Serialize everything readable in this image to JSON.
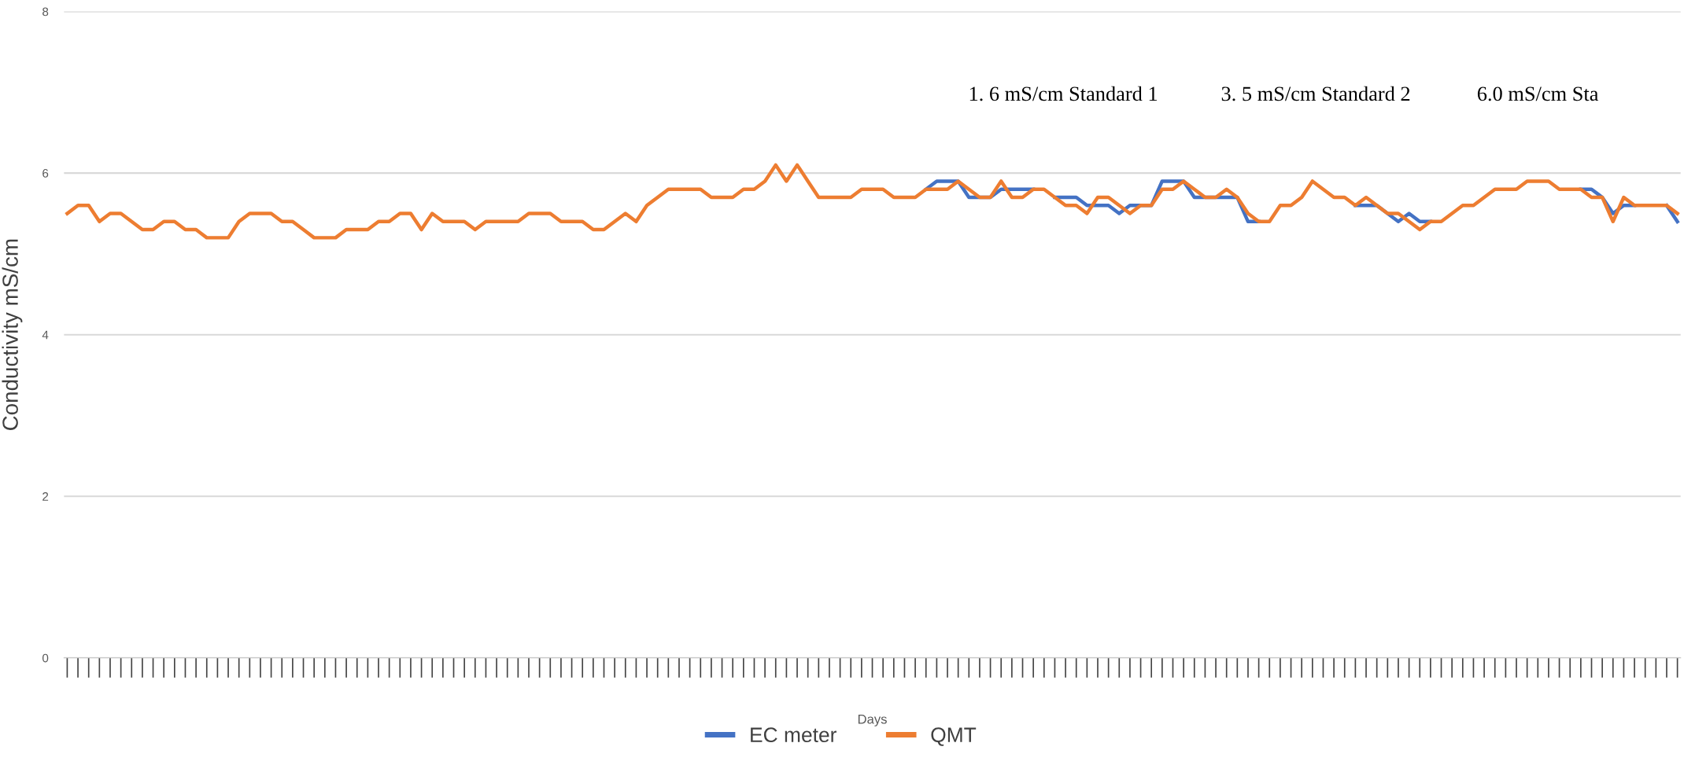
{
  "chart_data": {
    "type": "line",
    "xlabel": "Days",
    "ylabel": "Conductivity mS/cm",
    "categories": [
      null,
      null,
      null,
      null,
      null,
      null,
      null,
      null,
      null,
      null,
      null,
      null,
      null,
      null,
      null,
      null,
      null,
      null,
      null,
      null,
      null,
      null,
      null,
      null,
      null,
      null,
      null,
      null,
      null,
      null,
      null,
      null,
      null,
      null,
      null,
      null,
      null,
      null,
      null,
      null,
      null,
      null,
      null,
      null,
      null,
      null,
      null,
      null,
      null,
      null,
      null,
      null,
      null,
      null,
      null,
      null,
      null,
      null,
      null,
      null,
      null,
      null,
      null,
      null,
      null,
      null,
      null,
      null,
      null,
      null,
      null,
      null,
      null,
      null,
      null,
      null,
      null,
      null,
      null,
      null,
      null,
      null,
      null,
      null,
      null,
      null,
      null,
      null,
      null,
      null,
      null,
      null,
      null,
      null,
      null,
      null,
      null,
      null,
      null,
      null,
      null,
      null,
      null,
      null,
      null,
      null,
      null,
      null,
      null,
      null,
      null,
      null,
      null,
      null,
      null,
      null,
      null,
      null,
      null,
      null,
      null,
      null,
      null,
      null,
      null,
      null,
      null,
      null,
      null,
      null,
      null,
      null,
      null,
      null,
      null,
      null,
      null,
      null,
      null,
      null,
      null,
      null,
      null,
      null,
      null,
      null,
      null,
      null,
      null,
      null,
      null
    ],
    "series": [
      {
        "name": "EC meter",
        "color": "#4472c4",
        "values": [
          null,
          null,
          null,
          null,
          null,
          null,
          null,
          null,
          null,
          null,
          null,
          null,
          null,
          null,
          null,
          null,
          null,
          null,
          null,
          null,
          null,
          null,
          null,
          null,
          null,
          null,
          null,
          null,
          null,
          null,
          null,
          null,
          null,
          null,
          null,
          null,
          null,
          null,
          null,
          null,
          null,
          null,
          null,
          null,
          null,
          null,
          null,
          null,
          null,
          null,
          null,
          null,
          null,
          null,
          null,
          null,
          null,
          null,
          null,
          null,
          null,
          null,
          null,
          null,
          null,
          null,
          null,
          null,
          null,
          null,
          null,
          null,
          null,
          null,
          null,
          null,
          null,
          null,
          null,
          null,
          5.8,
          5.9,
          5.9,
          5.9,
          5.7,
          5.7,
          5.7,
          5.8,
          5.8,
          5.8,
          5.8,
          null,
          5.7,
          5.7,
          5.7,
          5.6,
          5.6,
          5.6,
          5.5,
          5.6,
          5.6,
          5.6,
          5.9,
          5.9,
          5.9,
          5.7,
          5.7,
          5.7,
          5.7,
          5.7,
          5.4,
          5.4,
          null,
          null,
          null,
          null,
          null,
          null,
          null,
          null,
          5.6,
          5.6,
          5.6,
          5.5,
          5.4,
          5.5,
          5.4,
          5.4,
          null,
          null,
          null,
          null,
          null,
          null,
          null,
          null,
          null,
          null,
          null,
          null,
          null,
          5.8,
          5.8,
          5.7,
          5.5,
          5.6,
          5.6,
          null,
          null,
          5.6,
          5.4
        ]
      },
      {
        "name": "QMT",
        "color": "#ed7d31",
        "values": [
          5.5,
          5.6,
          5.6,
          5.4,
          5.5,
          5.5,
          5.4,
          5.3,
          5.3,
          5.4,
          5.4,
          5.3,
          5.3,
          5.2,
          5.2,
          5.2,
          5.4,
          5.5,
          5.5,
          5.5,
          5.4,
          5.4,
          5.3,
          5.2,
          5.2,
          5.2,
          5.3,
          5.3,
          5.3,
          5.4,
          5.4,
          5.5,
          5.5,
          5.3,
          5.5,
          5.4,
          5.4,
          5.4,
          5.3,
          5.4,
          5.4,
          5.4,
          5.4,
          5.5,
          5.5,
          5.5,
          5.4,
          5.4,
          5.4,
          5.3,
          5.3,
          5.4,
          5.5,
          5.4,
          5.6,
          5.7,
          5.8,
          5.8,
          5.8,
          5.8,
          5.7,
          5.7,
          5.7,
          5.8,
          5.8,
          5.9,
          6.1,
          5.9,
          6.1,
          5.9,
          5.7,
          5.7,
          5.7,
          5.7,
          5.8,
          5.8,
          5.8,
          5.7,
          5.7,
          5.7,
          5.8,
          5.8,
          5.8,
          5.9,
          5.8,
          5.7,
          5.7,
          5.9,
          5.7,
          5.7,
          5.8,
          5.8,
          5.7,
          5.6,
          5.6,
          5.5,
          5.7,
          5.7,
          5.6,
          5.5,
          5.6,
          5.6,
          5.8,
          5.8,
          5.9,
          5.8,
          5.7,
          5.7,
          5.8,
          5.7,
          5.5,
          5.4,
          5.4,
          5.6,
          5.6,
          5.7,
          5.9,
          5.8,
          5.7,
          5.7,
          5.6,
          5.7,
          5.6,
          5.5,
          5.5,
          5.4,
          5.3,
          5.4,
          5.4,
          5.5,
          5.6,
          5.6,
          5.7,
          5.8,
          5.8,
          5.8,
          5.9,
          5.9,
          5.9,
          5.8,
          5.8,
          5.8,
          5.7,
          5.7,
          5.4,
          5.7,
          5.6,
          5.6,
          5.6,
          5.6,
          5.5
        ]
      }
    ],
    "ylim": [
      0,
      8
    ],
    "yticks": [
      0,
      2,
      4,
      6,
      8
    ],
    "grid": "y",
    "legend": "bottom",
    "marker": "none",
    "line_style": "solid",
    "annotations": [
      "1. 6 mS/cm Standard 1",
      "3. 5 mS/cm Standard 2",
      "6.0 mS/cm Sta"
    ]
  }
}
